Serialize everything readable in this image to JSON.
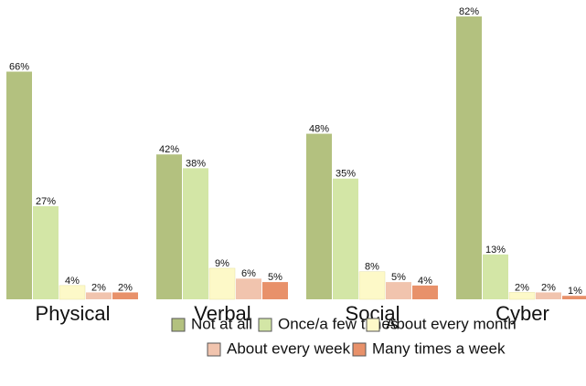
{
  "chart_data": {
    "type": "bar",
    "categories": [
      "Physical",
      "Verbal",
      "Social",
      "Cyber"
    ],
    "series": [
      {
        "name": "Not at all",
        "color": "#b3c17f",
        "values": [
          66,
          42,
          48,
          82
        ],
        "value_labels": [
          "66%",
          "42%",
          "48%",
          "82%"
        ]
      },
      {
        "name": "Once/a few times",
        "color": "#d3e6a6",
        "values": [
          27,
          38,
          35,
          13
        ],
        "value_labels": [
          "27%",
          "38%",
          "35%",
          "13%"
        ]
      },
      {
        "name": "About every month",
        "color": "#fdf9c8",
        "values": [
          4,
          9,
          8,
          2
        ],
        "value_labels": [
          "4%",
          "9%",
          "8%",
          "2%"
        ]
      },
      {
        "name": "About every week",
        "color": "#f1c4ae",
        "values": [
          2,
          6,
          5,
          2
        ],
        "value_labels": [
          "2%",
          "6%",
          "5%",
          "2%"
        ]
      },
      {
        "name": "Many times a week",
        "color": "#e8916a",
        "values": [
          2,
          5,
          4,
          1
        ],
        "value_labels": [
          "2%",
          "5%",
          "4%",
          "1%"
        ]
      }
    ],
    "legend": "bottom"
  }
}
